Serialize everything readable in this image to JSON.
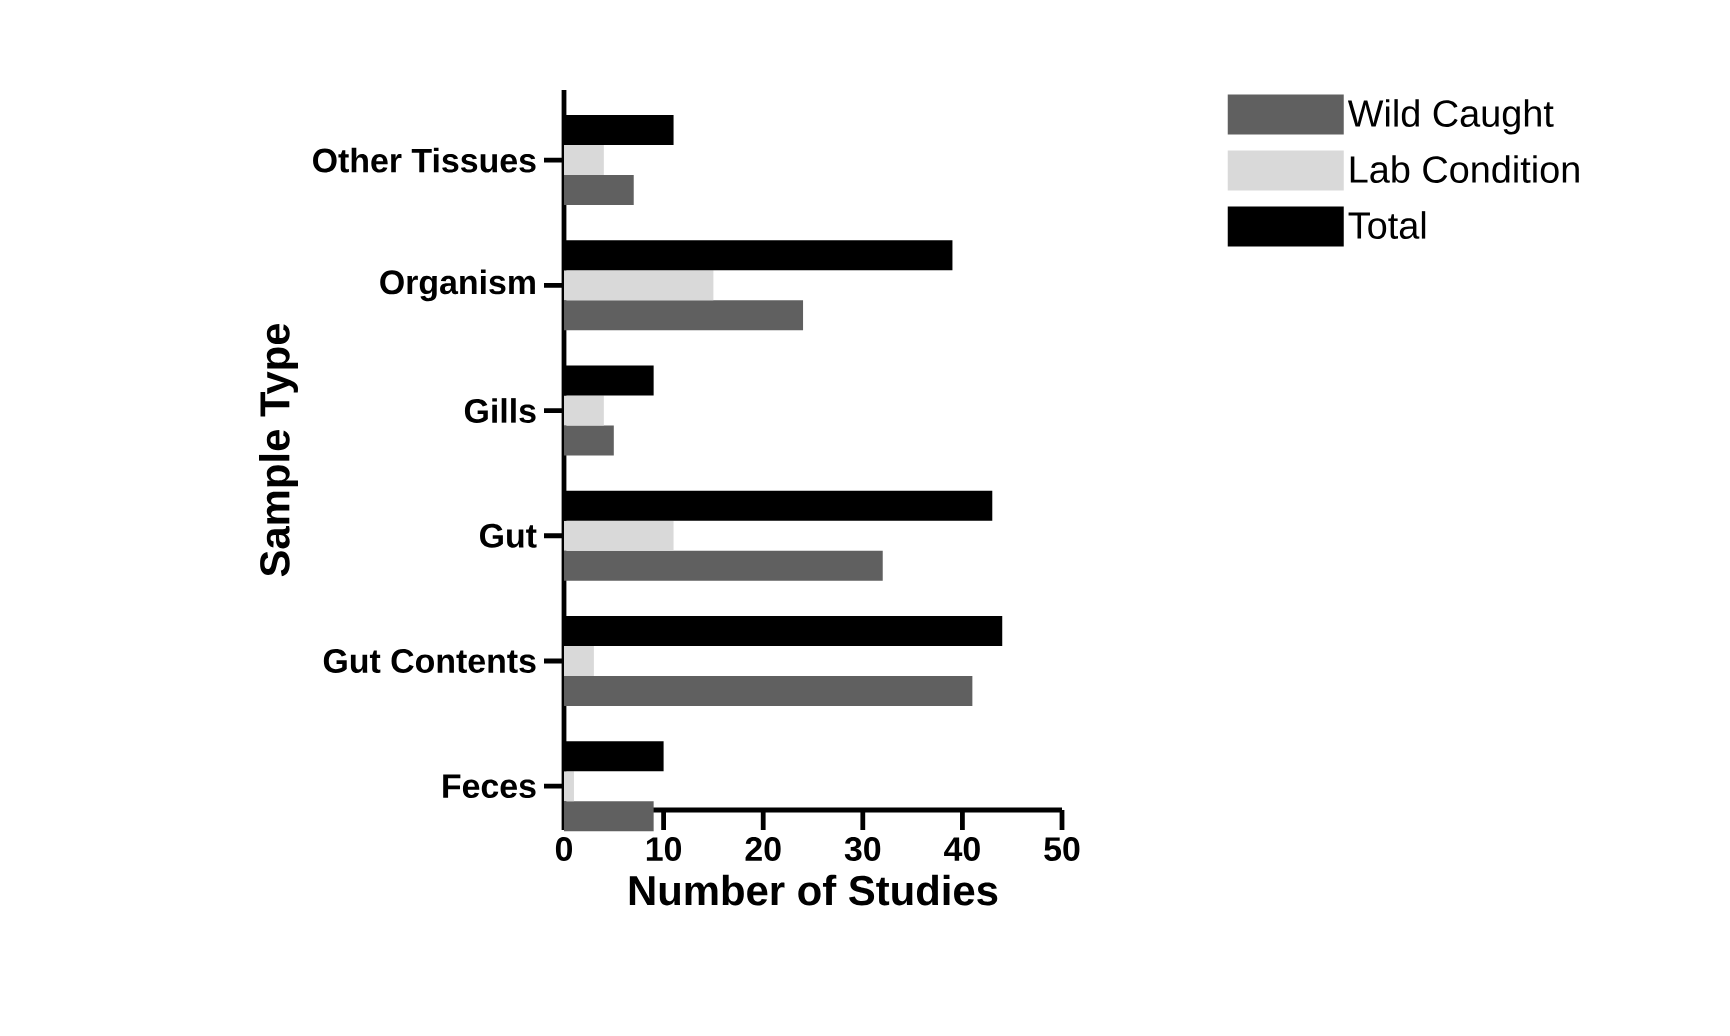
{
  "chart_data": {
    "type": "bar",
    "orientation": "horizontal",
    "xlabel": "Number of  Studies",
    "ylabel": "Sample  Type",
    "categories": [
      "Other Tissues",
      "Organism",
      "Gills",
      "Gut",
      "Gut Contents",
      "Feces"
    ],
    "series": [
      {
        "name": "Wild Caught",
        "color": "#606060",
        "values": [
          7,
          24,
          5,
          32,
          41,
          9
        ]
      },
      {
        "name": "Lab Condition",
        "color": "#d9d9d9",
        "values": [
          4,
          15,
          4,
          11,
          3,
          1
        ]
      },
      {
        "name": "Total",
        "color": "#000000",
        "values": [
          11,
          39,
          9,
          43,
          44,
          10
        ]
      }
    ],
    "xlim": [
      0,
      50
    ],
    "xticks": [
      0,
      10,
      20,
      30,
      40,
      50
    ],
    "grid": false,
    "legend": "top right"
  }
}
